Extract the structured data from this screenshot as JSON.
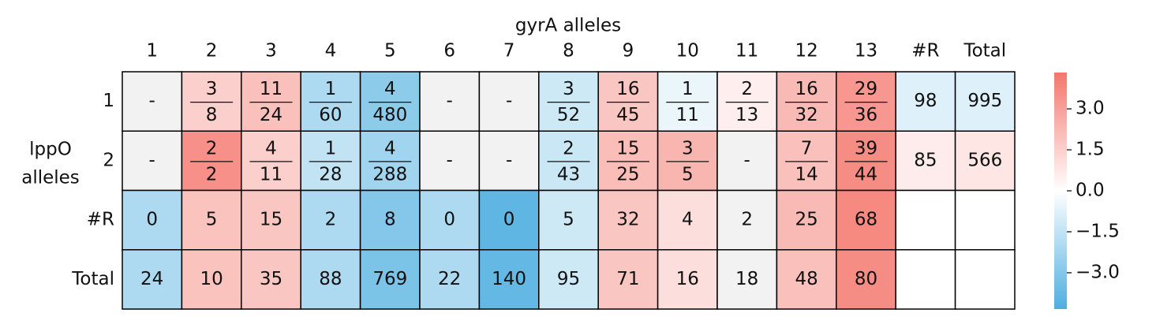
{
  "chart_data": {
    "type": "heatmap",
    "title": "gyrA alleles",
    "ylabel": [
      "lppO",
      "alleles"
    ],
    "columns": [
      "1",
      "2",
      "3",
      "4",
      "5",
      "6",
      "7",
      "8",
      "9",
      "10",
      "11",
      "12",
      "13",
      "#R",
      "Total"
    ],
    "rows": [
      "1",
      "2",
      "#R",
      "Total"
    ],
    "cells": [
      [
        "-",
        {
          "num": 3,
          "den": 8
        },
        {
          "num": 11,
          "den": 24
        },
        {
          "num": 1,
          "den": 60
        },
        {
          "num": 4,
          "den": 480
        },
        "-",
        "-",
        {
          "num": 3,
          "den": 52
        },
        {
          "num": 16,
          "den": 45
        },
        {
          "num": 1,
          "den": 11
        },
        {
          "num": 2,
          "den": 13
        },
        {
          "num": 16,
          "den": 32
        },
        {
          "num": 29,
          "den": 36
        },
        98,
        995
      ],
      [
        "-",
        {
          "num": 2,
          "den": 2
        },
        {
          "num": 4,
          "den": 11
        },
        {
          "num": 1,
          "den": 28
        },
        {
          "num": 4,
          "den": 288
        },
        "-",
        "-",
        {
          "num": 2,
          "den": 43
        },
        {
          "num": 15,
          "den": 25
        },
        {
          "num": 3,
          "den": 5
        },
        "-",
        {
          "num": 7,
          "den": 14
        },
        {
          "num": 39,
          "den": 44
        },
        85,
        566
      ],
      [
        0,
        5,
        15,
        2,
        8,
        0,
        0,
        5,
        32,
        4,
        2,
        25,
        68,
        null,
        null
      ],
      [
        24,
        10,
        35,
        88,
        769,
        22,
        140,
        95,
        71,
        16,
        18,
        48,
        80,
        null,
        null
      ]
    ],
    "values": [
      [
        null,
        1.5,
        2.0,
        -2.0,
        -2.8,
        null,
        null,
        -1.2,
        1.8,
        -0.5,
        0.5,
        2.2,
        3.3,
        -0.8,
        -0.8
      ],
      [
        null,
        3.5,
        1.5,
        -1.5,
        -2.3,
        null,
        null,
        -1.3,
        2.1,
        2.3,
        null,
        2.0,
        3.6,
        0.6,
        0.8
      ],
      [
        -2.0,
        1.9,
        1.8,
        -2.0,
        -3.0,
        -2.0,
        -3.9,
        -1.2,
        1.8,
        1.0,
        null,
        2.2,
        3.7,
        null,
        null
      ],
      [
        -2.0,
        1.9,
        1.8,
        -2.0,
        -3.2,
        -2.0,
        -3.8,
        -1.2,
        1.8,
        1.0,
        null,
        2.0,
        3.6,
        null,
        null
      ]
    ],
    "cmap": [
      "#4eaee0",
      "#ffffff",
      "#f4766c"
    ],
    "nan_color": "#f2f2f2",
    "clim": [
      -4.33,
      4.33
    ],
    "cticks": [
      {
        "value": -3.0,
        "label": "−3.0"
      },
      {
        "value": -1.5,
        "label": "−1.5"
      },
      {
        "value": 0.0,
        "label": "0.0"
      },
      {
        "value": 1.5,
        "label": "1.5"
      },
      {
        "value": 3.0,
        "label": "3.0"
      }
    ]
  }
}
